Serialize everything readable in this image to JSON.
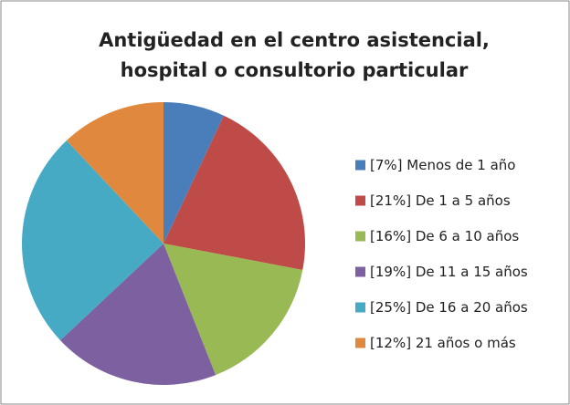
{
  "chart_data": {
    "type": "pie",
    "title": [
      "Antigüedad en el centro asistencial,",
      "hospital o consultorio particular"
    ],
    "categories": [
      "Menos de 1 año",
      "De 1 a 5 años",
      "De 6 a 10 años",
      "De 11 a 15 años",
      "De 16 a 20 años",
      "21 años o más"
    ],
    "values": [
      7,
      21,
      16,
      19,
      25,
      12
    ],
    "value_labels": [
      "[7%]",
      "[21%]",
      "[16%]",
      "[19%]",
      "[25%]",
      "[12%]"
    ],
    "colors": [
      "#4a7ebb",
      "#be4b48",
      "#98b954",
      "#7d60a0",
      "#46aac5",
      "#e0893e"
    ],
    "legend": "right"
  }
}
